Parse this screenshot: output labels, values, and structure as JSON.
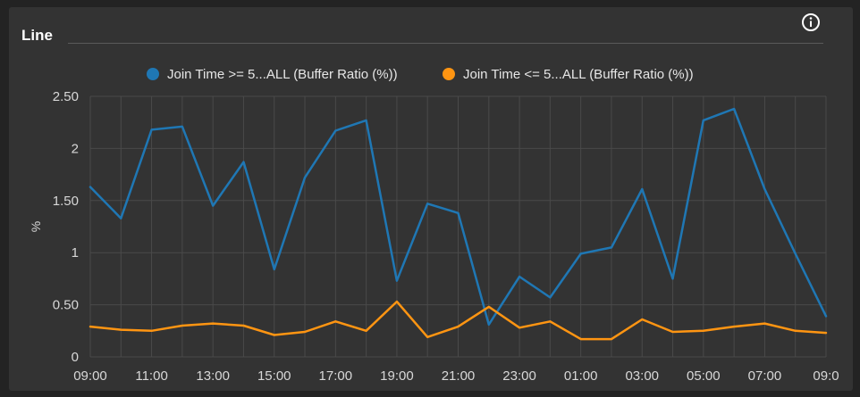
{
  "panel": {
    "title": "Line"
  },
  "icons": {
    "info": "info-circle-icon"
  },
  "colors": {
    "series_blue": "#1F77B4",
    "series_orange": "#FF9512",
    "grid": "#4a4a4a",
    "background": "#333333"
  },
  "chart_data": {
    "type": "line",
    "title": "",
    "xlabel": "",
    "ylabel": "%",
    "ylim": [
      0,
      2.5
    ],
    "yticks": [
      "0",
      "0.50",
      "1",
      "1.50",
      "2",
      "2.50"
    ],
    "ytick_values": [
      0,
      0.5,
      1,
      1.5,
      2,
      2.5
    ],
    "x": [
      "09:00",
      "10:00",
      "11:00",
      "12:00",
      "13:00",
      "14:00",
      "15:00",
      "16:00",
      "17:00",
      "18:00",
      "19:00",
      "20:00",
      "21:00",
      "22:00",
      "23:00",
      "00:00",
      "01:00",
      "02:00",
      "03:00",
      "04:00",
      "05:00",
      "06:00",
      "07:00",
      "08:00",
      "09:00"
    ],
    "xtick_labels": [
      "09:00",
      "11:00",
      "13:00",
      "15:00",
      "17:00",
      "19:00",
      "21:00",
      "23:00",
      "01:00",
      "03:00",
      "05:00",
      "07:00",
      "09:0"
    ],
    "legend_position": "top-center",
    "grid": true,
    "series": [
      {
        "name": "Join Time >= 5...ALL (Buffer Ratio (%))",
        "color": "#1F77B4",
        "values": [
          1.63,
          1.33,
          2.18,
          2.21,
          1.45,
          1.87,
          0.84,
          1.72,
          2.17,
          2.27,
          0.73,
          1.47,
          1.38,
          0.31,
          0.77,
          0.57,
          0.99,
          1.05,
          1.61,
          0.75,
          2.27,
          2.38,
          1.61,
          0.99,
          0.39
        ]
      },
      {
        "name": "Join Time <= 5...ALL (Buffer Ratio (%))",
        "color": "#FF9512",
        "values": [
          0.29,
          0.26,
          0.25,
          0.3,
          0.32,
          0.3,
          0.21,
          0.24,
          0.34,
          0.25,
          0.53,
          0.19,
          0.29,
          0.48,
          0.28,
          0.34,
          0.17,
          0.17,
          0.36,
          0.24,
          0.25,
          0.29,
          0.32,
          0.25,
          0.23
        ]
      }
    ]
  }
}
